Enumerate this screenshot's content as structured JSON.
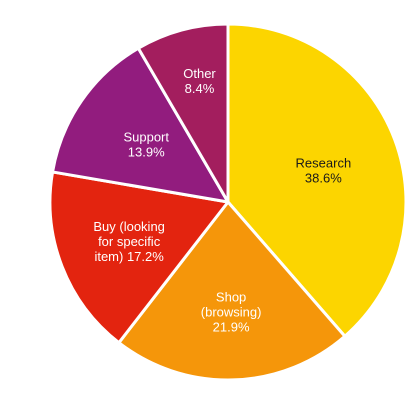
{
  "chart_data": {
    "type": "pie",
    "title": "",
    "legend": "none",
    "slices": [
      {
        "label": "Research",
        "lines": [
          "Research"
        ],
        "value_label": "38.6%",
        "value": 38.6,
        "color": "#FCD500",
        "text_color": "dark"
      },
      {
        "label": "Shop (browsing)",
        "lines": [
          "Shop",
          "(browsing)"
        ],
        "value_label": "21.9%",
        "value": 21.9,
        "color": "#F5960A",
        "text_color": "light"
      },
      {
        "label": "Buy (looking for specific item)",
        "lines": [
          "Buy (looking",
          "for specific",
          "item)"
        ],
        "value_label": "17.2%",
        "value": 17.2,
        "color": "#E3240F",
        "text_color": "light"
      },
      {
        "label": "Support",
        "lines": [
          "Support"
        ],
        "value_label": "13.9%",
        "value": 13.9,
        "color": "#921C7E",
        "text_color": "light"
      },
      {
        "label": "Other",
        "lines": [
          "Other"
        ],
        "value_label": "8.4%",
        "value": 8.4,
        "color": "#A31E5E",
        "text_color": "light"
      }
    ]
  }
}
